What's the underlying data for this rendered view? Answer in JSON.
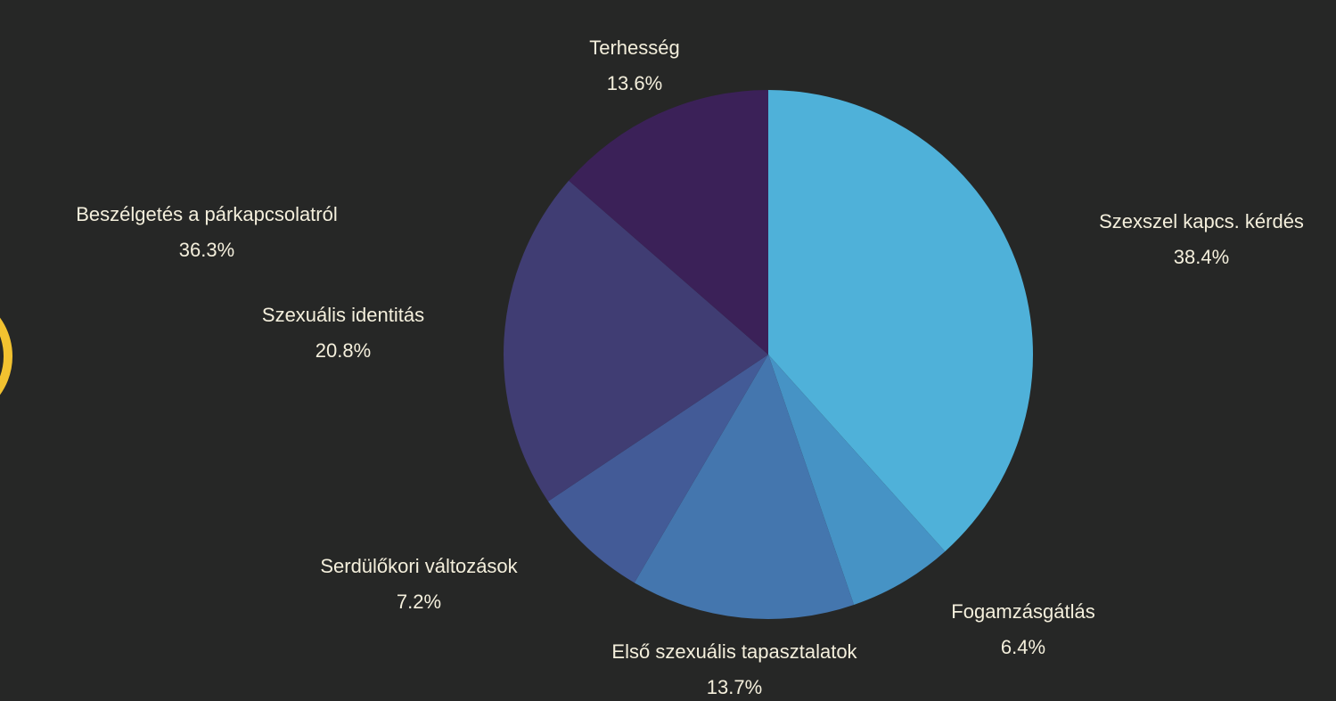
{
  "chart_data": {
    "type": "pie",
    "categories": [
      "Szexszel kapcs. kérdés",
      "Fogamzásgátlás",
      "Első szexuális tapasztalatok",
      "Serdülőkori változások",
      "Szexuális identitás",
      "Terhesség"
    ],
    "values": [
      38.4,
      6.4,
      13.7,
      7.2,
      20.8,
      13.6
    ],
    "value_labels": [
      "38.4%",
      "6.4%",
      "13.7%",
      "7.2%",
      "20.8%",
      "13.6%"
    ],
    "colors": [
      "#4fb1d9",
      "#4693c5",
      "#4476ae",
      "#435b97",
      "#403d73",
      "#3b2158"
    ],
    "annotations": [
      "Beszélgetés a párkapcsolatról",
      "36.3%"
    ]
  }
}
